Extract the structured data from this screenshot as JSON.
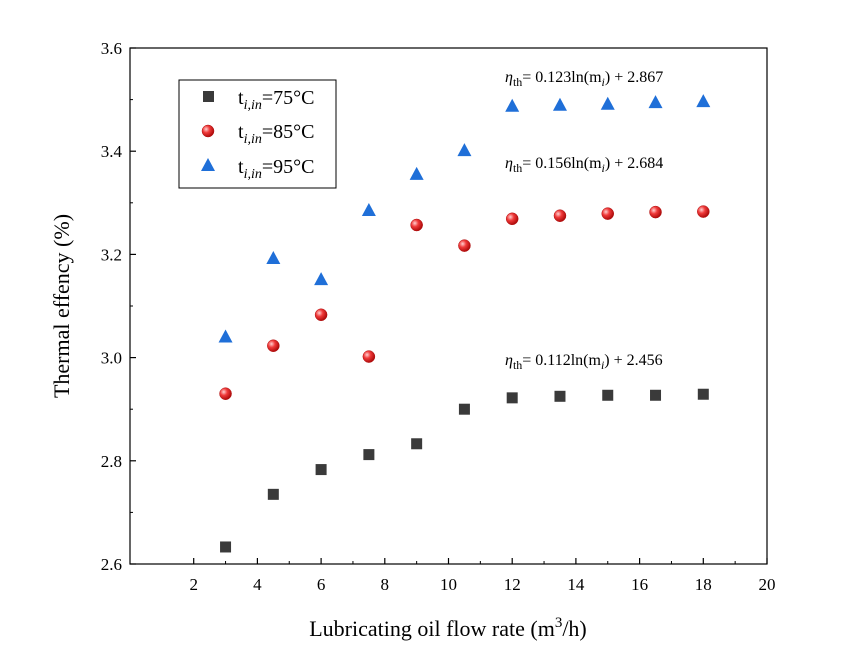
{
  "chart_data": {
    "type": "scatter",
    "xlabel": "Lubricating oil flow rate (m",
    "xlabel_sup": "3",
    "xlabel_tail": "/h)",
    "ylabel": "Thermal effency (%)",
    "xlim": [
      0,
      20
    ],
    "ylim": [
      2.6,
      3.6
    ],
    "x_ticks": [
      "2",
      "4",
      "6",
      "8",
      "10",
      "12",
      "14",
      "16",
      "18",
      "20"
    ],
    "y_ticks": [
      "2.6",
      "2.8",
      "3.0",
      "3.2",
      "3.4",
      "3.6"
    ],
    "grid": false,
    "legend_position": "top-left",
    "x": [
      3,
      4.5,
      6,
      7.5,
      9,
      10.5,
      12,
      13.5,
      15,
      16.5,
      18
    ],
    "series": [
      {
        "name_base": "t",
        "name_sub": "i,in",
        "name_tail": "=75°C",
        "marker": "square",
        "color": "#3a3a3a",
        "values": [
          2.633,
          2.735,
          2.783,
          2.812,
          2.833,
          2.9,
          2.922,
          2.925,
          2.927,
          2.927,
          2.929
        ]
      },
      {
        "name_base": "t",
        "name_sub": "i,in",
        "name_tail": "=85°C",
        "marker": "circle",
        "color": "#e02020",
        "values": [
          2.93,
          3.023,
          3.083,
          3.002,
          3.257,
          3.217,
          3.269,
          3.275,
          3.279,
          3.282,
          3.283
        ]
      },
      {
        "name_base": "t",
        "name_sub": "i,in",
        "name_tail": "=95°C",
        "marker": "triangle",
        "color": "#1f6fd8",
        "values": [
          3.041,
          3.193,
          3.152,
          3.286,
          3.356,
          3.402,
          3.488,
          3.49,
          3.492,
          3.495,
          3.497
        ]
      }
    ],
    "annotations": [
      {
        "eta": "η",
        "eta_sub": "th",
        "text1": "= 0.123ln(m",
        "text_sub": "i",
        "text2": ") + 2.867"
      },
      {
        "eta": "η",
        "eta_sub": "th",
        "text1": "= 0.156ln(m",
        "text_sub": "i",
        "text2": ") + 2.684"
      },
      {
        "eta": "η",
        "eta_sub": "th",
        "text1": "= 0.112ln(m",
        "text_sub": "i",
        "text2": ") + 2.456"
      }
    ]
  }
}
